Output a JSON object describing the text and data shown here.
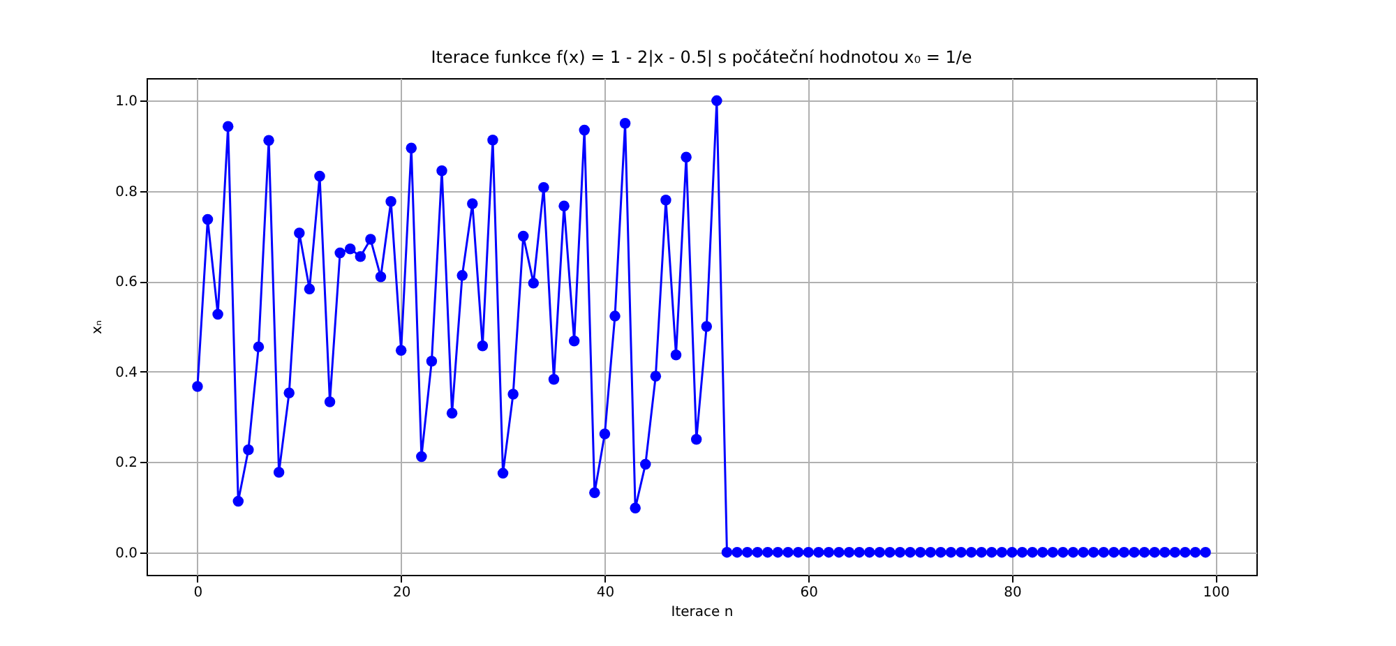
{
  "chart_data": {
    "type": "line",
    "title": "Iterace funkce f(x) = 1 - 2|x - 0.5| s počáteční hodnotou x₀ = 1/e",
    "xlabel": "Iterace n",
    "ylabel": "xₙ",
    "x": [
      0,
      1,
      2,
      3,
      4,
      5,
      6,
      7,
      8,
      9,
      10,
      11,
      12,
      13,
      14,
      15,
      16,
      17,
      18,
      19,
      20,
      21,
      22,
      23,
      24,
      25,
      26,
      27,
      28,
      29,
      30,
      31,
      32,
      33,
      34,
      35,
      36,
      37,
      38,
      39,
      40,
      41,
      42,
      43,
      44,
      45,
      46,
      47,
      48,
      49,
      50,
      51,
      52,
      53,
      54,
      55,
      56,
      57,
      58,
      59,
      60,
      61,
      62,
      63,
      64,
      65,
      66,
      67,
      68,
      69,
      70,
      71,
      72,
      73,
      74,
      75,
      76,
      77,
      78,
      79,
      80,
      81,
      82,
      83,
      84,
      85,
      86,
      87,
      88,
      89,
      90,
      91,
      92,
      93,
      94,
      95,
      96,
      97,
      98,
      99
    ],
    "series": [
      {
        "color": "#0000ff",
        "values": [
          0.367,
          0.737,
          0.527,
          0.943,
          0.113,
          0.227,
          0.455,
          0.912,
          0.177,
          0.353,
          0.707,
          0.583,
          0.833,
          0.333,
          0.663,
          0.672,
          0.655,
          0.693,
          0.61,
          0.777,
          0.447,
          0.895,
          0.212,
          0.423,
          0.845,
          0.308,
          0.613,
          0.772,
          0.457,
          0.913,
          0.175,
          0.35,
          0.7,
          0.596,
          0.808,
          0.383,
          0.767,
          0.468,
          0.935,
          0.132,
          0.262,
          0.523,
          0.95,
          0.098,
          0.195,
          0.39,
          0.78,
          0.437,
          0.875,
          0.25,
          0.5,
          1.0,
          0,
          0,
          0,
          0,
          0,
          0,
          0,
          0,
          0,
          0,
          0,
          0,
          0,
          0,
          0,
          0,
          0,
          0,
          0,
          0,
          0,
          0,
          0,
          0,
          0,
          0,
          0,
          0,
          0,
          0,
          0,
          0,
          0,
          0,
          0,
          0,
          0,
          0,
          0,
          0,
          0,
          0,
          0,
          0,
          0,
          0,
          0,
          0
        ]
      }
    ],
    "xlim": [
      -5,
      104
    ],
    "xticks": [
      0,
      20,
      40,
      60,
      80,
      100
    ],
    "ylim": [
      -0.05,
      1.05
    ],
    "yticks": [
      {
        "value": 0,
        "label": "0.0"
      },
      {
        "value": 0.2,
        "label": "0.2"
      },
      {
        "value": 0.4,
        "label": "0.4"
      },
      {
        "value": 0.6,
        "label": "0.6"
      },
      {
        "value": 0.8,
        "label": "0.8"
      },
      {
        "value": 1,
        "label": "1.0"
      }
    ],
    "grid": true,
    "marker": "circle",
    "line_style": "solid"
  }
}
